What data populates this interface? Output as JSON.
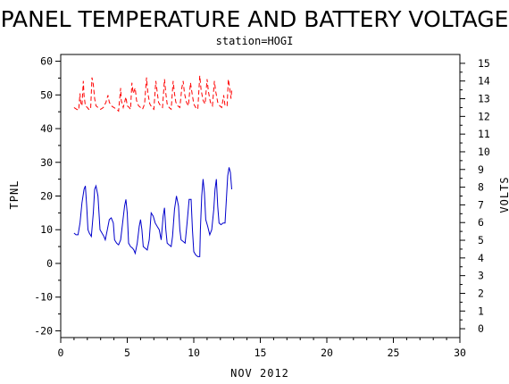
{
  "chart_data": {
    "type": "line",
    "title": "PANEL TEMPERATURE AND BATTERY VOLTAGE",
    "subtitle": "station=HOGI",
    "xlabel": "NOV 2012",
    "ylabel_left": "TPNL",
    "ylabel_right": "VOLTS",
    "xlim": [
      0,
      30
    ],
    "ylim_left": [
      -22,
      62
    ],
    "ylim_right": [
      -0.5,
      15.5
    ],
    "x_ticks": [
      0,
      5,
      10,
      15,
      20,
      25,
      30
    ],
    "y_ticks_left": [
      -20,
      -10,
      0,
      10,
      20,
      30,
      40,
      50,
      60
    ],
    "y_ticks_right": [
      0,
      1,
      2,
      3,
      4,
      5,
      6,
      7,
      8,
      9,
      10,
      11,
      12,
      13,
      14,
      15
    ],
    "grid": false,
    "series": [
      {
        "name": "TPNL",
        "axis": "left",
        "color": "#0000cc",
        "style": "solid",
        "points": [
          [
            1.0,
            9
          ],
          [
            1.15,
            8.5
          ],
          [
            1.3,
            8.5
          ],
          [
            1.45,
            12
          ],
          [
            1.6,
            18
          ],
          [
            1.75,
            22
          ],
          [
            1.85,
            23
          ],
          [
            1.95,
            17
          ],
          [
            2.05,
            10
          ],
          [
            2.15,
            9
          ],
          [
            2.3,
            8
          ],
          [
            2.45,
            15
          ],
          [
            2.55,
            22
          ],
          [
            2.65,
            23
          ],
          [
            2.8,
            20
          ],
          [
            2.95,
            10
          ],
          [
            3.1,
            9
          ],
          [
            3.25,
            8
          ],
          [
            3.35,
            7
          ],
          [
            3.5,
            10
          ],
          [
            3.65,
            13
          ],
          [
            3.8,
            13.5
          ],
          [
            3.95,
            12
          ],
          [
            4.05,
            7
          ],
          [
            4.2,
            6
          ],
          [
            4.35,
            5.5
          ],
          [
            4.5,
            7
          ],
          [
            4.65,
            12
          ],
          [
            4.8,
            17
          ],
          [
            4.9,
            19
          ],
          [
            5.0,
            15
          ],
          [
            5.1,
            6
          ],
          [
            5.25,
            5
          ],
          [
            5.4,
            4.5
          ],
          [
            5.5,
            4
          ],
          [
            5.6,
            3
          ],
          [
            5.75,
            6
          ],
          [
            5.9,
            11
          ],
          [
            6.0,
            13
          ],
          [
            6.1,
            10
          ],
          [
            6.2,
            5
          ],
          [
            6.35,
            4.5
          ],
          [
            6.5,
            4
          ],
          [
            6.65,
            7
          ],
          [
            6.8,
            15
          ],
          [
            6.95,
            14
          ],
          [
            7.1,
            12
          ],
          [
            7.25,
            11
          ],
          [
            7.4,
            10
          ],
          [
            7.55,
            7
          ],
          [
            7.7,
            14
          ],
          [
            7.8,
            16.5
          ],
          [
            7.9,
            10
          ],
          [
            8.0,
            6
          ],
          [
            8.15,
            5.5
          ],
          [
            8.3,
            5
          ],
          [
            8.4,
            8
          ],
          [
            8.55,
            16
          ],
          [
            8.7,
            20
          ],
          [
            8.85,
            17
          ],
          [
            8.95,
            10
          ],
          [
            9.05,
            7
          ],
          [
            9.2,
            6.5
          ],
          [
            9.35,
            6
          ],
          [
            9.5,
            12
          ],
          [
            9.65,
            19
          ],
          [
            9.8,
            19
          ],
          [
            9.9,
            10
          ],
          [
            10.0,
            3.5
          ],
          [
            10.15,
            2.5
          ],
          [
            10.3,
            2
          ],
          [
            10.45,
            2
          ],
          [
            10.5,
            10
          ],
          [
            10.6,
            20
          ],
          [
            10.7,
            25
          ],
          [
            10.8,
            21
          ],
          [
            10.9,
            13
          ],
          [
            11.05,
            11
          ],
          [
            11.2,
            8.5
          ],
          [
            11.35,
            10
          ],
          [
            11.5,
            16
          ],
          [
            11.6,
            22
          ],
          [
            11.7,
            25
          ],
          [
            11.8,
            17
          ],
          [
            11.9,
            12
          ],
          [
            12.05,
            11.5
          ],
          [
            12.2,
            12
          ],
          [
            12.35,
            12
          ],
          [
            12.45,
            19
          ],
          [
            12.55,
            26
          ],
          [
            12.65,
            28.5
          ],
          [
            12.75,
            27
          ],
          [
            12.85,
            22
          ]
        ]
      },
      {
        "name": "VOLTS",
        "axis": "right",
        "color": "#ff0000",
        "style": "dashed",
        "points": [
          [
            1.0,
            12.5
          ],
          [
            1.2,
            12.4
          ],
          [
            1.35,
            12.35
          ],
          [
            1.45,
            13.3
          ],
          [
            1.5,
            12.8
          ],
          [
            1.6,
            12.6
          ],
          [
            1.7,
            14
          ],
          [
            1.75,
            13.2
          ],
          [
            1.85,
            12.6
          ],
          [
            2.0,
            12.5
          ],
          [
            2.1,
            12.4
          ],
          [
            2.25,
            12.4
          ],
          [
            2.35,
            14.2
          ],
          [
            2.45,
            13.8
          ],
          [
            2.55,
            13
          ],
          [
            2.65,
            12.6
          ],
          [
            2.8,
            12.5
          ],
          [
            3.0,
            12.4
          ],
          [
            3.2,
            12.5
          ],
          [
            3.4,
            12.8
          ],
          [
            3.55,
            13.2
          ],
          [
            3.65,
            12.8
          ],
          [
            3.8,
            12.6
          ],
          [
            4.0,
            12.5
          ],
          [
            4.2,
            12.4
          ],
          [
            4.35,
            12.3
          ],
          [
            4.5,
            13.6
          ],
          [
            4.55,
            12.9
          ],
          [
            4.7,
            12.5
          ],
          [
            4.9,
            13.1
          ],
          [
            5.0,
            12.6
          ],
          [
            5.15,
            12.5
          ],
          [
            5.25,
            12.4
          ],
          [
            5.35,
            13.9
          ],
          [
            5.45,
            13.3
          ],
          [
            5.6,
            13.6
          ],
          [
            5.7,
            12.9
          ],
          [
            5.85,
            12.6
          ],
          [
            6.0,
            12.5
          ],
          [
            6.15,
            12.4
          ],
          [
            6.3,
            12.7
          ],
          [
            6.45,
            14.2
          ],
          [
            6.55,
            13.3
          ],
          [
            6.7,
            12.7
          ],
          [
            6.85,
            12.5
          ],
          [
            7.0,
            12.4
          ],
          [
            7.15,
            14.0
          ],
          [
            7.25,
            13.4
          ],
          [
            7.35,
            12.8
          ],
          [
            7.5,
            12.6
          ],
          [
            7.65,
            12.5
          ],
          [
            7.8,
            14.1
          ],
          [
            7.9,
            13.3
          ],
          [
            8.0,
            12.7
          ],
          [
            8.15,
            12.5
          ],
          [
            8.3,
            12.4
          ],
          [
            8.45,
            14.0
          ],
          [
            8.55,
            13.3
          ],
          [
            8.65,
            12.8
          ],
          [
            8.8,
            12.6
          ],
          [
            8.95,
            12.5
          ],
          [
            9.1,
            13.6
          ],
          [
            9.2,
            14.0
          ],
          [
            9.3,
            13.3
          ],
          [
            9.45,
            12.8
          ],
          [
            9.6,
            12.6
          ],
          [
            9.75,
            13.9
          ],
          [
            9.85,
            13.4
          ],
          [
            10.0,
            12.7
          ],
          [
            10.15,
            12.5
          ],
          [
            10.3,
            12.4
          ],
          [
            10.45,
            14.3
          ],
          [
            10.55,
            13.5
          ],
          [
            10.7,
            12.9
          ],
          [
            10.85,
            12.7
          ],
          [
            11.0,
            14.1
          ],
          [
            11.1,
            13.4
          ],
          [
            11.25,
            12.8
          ],
          [
            11.4,
            12.6
          ],
          [
            11.55,
            14.0
          ],
          [
            11.65,
            13.4
          ],
          [
            11.8,
            12.8
          ],
          [
            11.95,
            12.6
          ],
          [
            12.1,
            12.5
          ],
          [
            12.25,
            13.2
          ],
          [
            12.35,
            12.6
          ],
          [
            12.5,
            12.6
          ],
          [
            12.6,
            14.1
          ],
          [
            12.7,
            13.6
          ],
          [
            12.8,
            13.0
          ],
          [
            12.85,
            13.5
          ]
        ]
      }
    ]
  }
}
